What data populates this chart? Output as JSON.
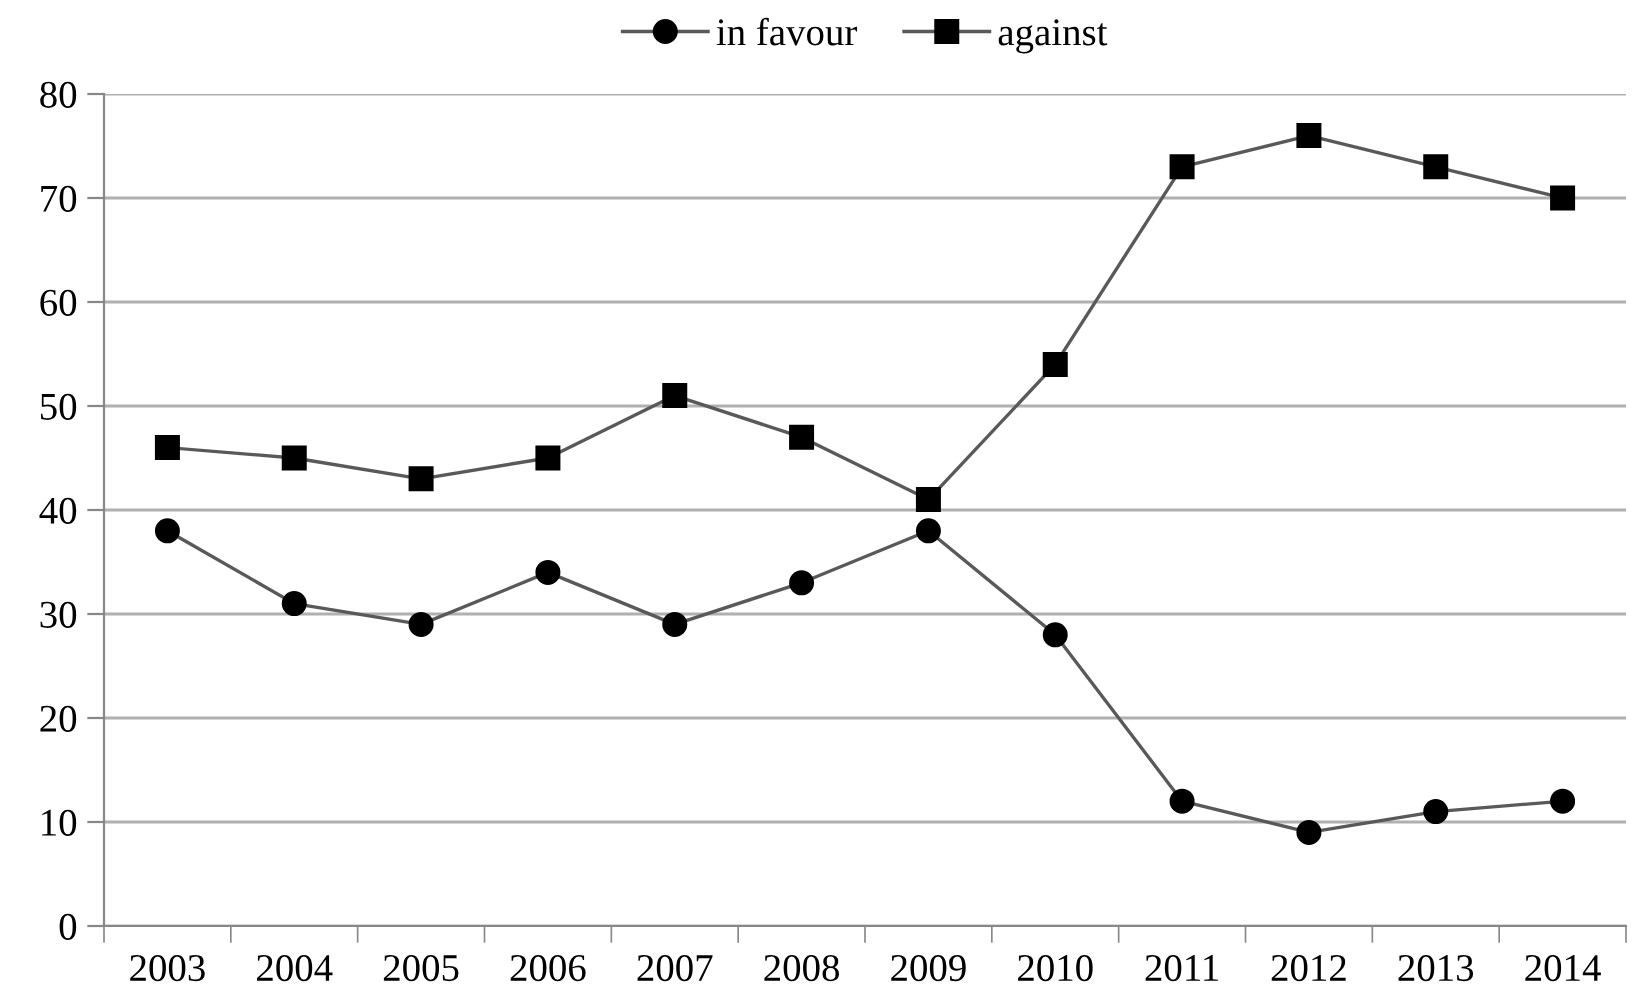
{
  "chart_data": {
    "type": "line",
    "categories": [
      "2003",
      "2004",
      "2005",
      "2006",
      "2007",
      "2008",
      "2009",
      "2010",
      "2011",
      "2012",
      "2013",
      "2014"
    ],
    "series": [
      {
        "name": "in favour",
        "color": "#000000",
        "marker": "circle",
        "values": [
          38,
          31,
          29,
          34,
          29,
          33,
          38,
          28,
          12,
          9,
          11,
          12
        ]
      },
      {
        "name": "against",
        "color": "#000000",
        "marker": "square",
        "values": [
          46,
          45,
          43,
          45,
          51,
          47,
          41,
          54,
          73,
          76,
          73,
          70
        ]
      }
    ],
    "ylim": [
      0,
      80
    ],
    "yticks": [
      0,
      10,
      20,
      30,
      40,
      50,
      60,
      70,
      80
    ],
    "grid": "y",
    "legend": "top",
    "line_style": "solid"
  }
}
